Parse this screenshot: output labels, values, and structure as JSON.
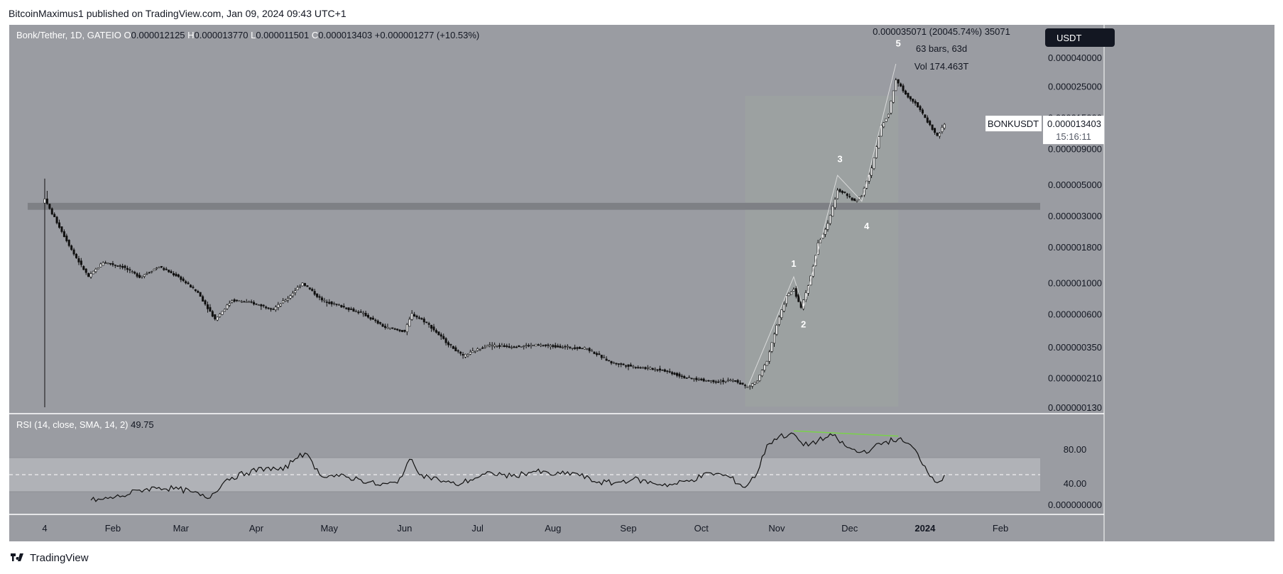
{
  "header": {
    "published_text": "BitcoinMaximus1 published on TradingView.com, Jan 09, 2024 09:43 UTC+1"
  },
  "footer": {
    "brand": "TradingView"
  },
  "colors": {
    "background": "#9a9ca2",
    "frame": "#ffffff",
    "candle": "#111111",
    "rsi_band": "#b0b2b7",
    "support_band": "#7e8085",
    "range_box": "#9fa5a0",
    "divergence": "#7ad24a",
    "wave_label": "#ffffff"
  },
  "chart_data": {
    "type": "candlestick",
    "symbol_line": {
      "name": "Bonk/Tether, 1D, GATEIO",
      "o_label": "O",
      "o": "0.000012125",
      "h_label": "H",
      "h": "0.000013770",
      "l_label": "L",
      "l": "0.000011501",
      "c_label": "C",
      "c": "0.000013403",
      "change": "+0.000001277 (+10.53%)"
    },
    "currency_button": "USDT",
    "price_tag": {
      "symbol": "BONKUSDT",
      "price": "0.000013403",
      "countdown": "15:16:11"
    },
    "y_scale": "log",
    "y_ticks": [
      "0.000040000",
      "0.000025000",
      "0.000015000",
      "0.000009000",
      "0.000005000",
      "0.000003000",
      "0.000001800",
      "0.000001000",
      "0.000000600",
      "0.000000350",
      "0.000000210",
      "0.000000130"
    ],
    "y_tick_values": [
      4e-05,
      2.5e-05,
      1.5e-05,
      9e-06,
      5e-06,
      3e-06,
      1.8e-06,
      1e-06,
      6e-07,
      3.5e-07,
      2.1e-07,
      1.3e-07
    ],
    "x_ticks": [
      "4",
      "Feb",
      "Mar",
      "Apr",
      "May",
      "Jun",
      "Jul",
      "Aug",
      "Sep",
      "Oct",
      "Nov",
      "Dec",
      "2024",
      "Feb"
    ],
    "x_tick_dates": [
      "2023-01-04",
      "2023-02-01",
      "2023-03-01",
      "2023-04-01",
      "2023-05-01",
      "2023-06-01",
      "2023-07-01",
      "2023-08-01",
      "2023-09-01",
      "2023-10-01",
      "2023-11-01",
      "2023-12-01",
      "2024-01-01",
      "2024-02-01"
    ],
    "x_tick_bold": [
      false,
      false,
      false,
      false,
      false,
      false,
      false,
      false,
      false,
      false,
      false,
      false,
      true,
      false
    ],
    "start_date": "2023-01-04",
    "close_path": [
      [
        "2023-01-04",
        4e-06
      ],
      [
        "2023-01-05",
        3.6e-06
      ],
      [
        "2023-01-10",
        2.5e-06
      ],
      [
        "2023-01-16",
        1.6e-06
      ],
      [
        "2023-01-22",
        1.1e-06
      ],
      [
        "2023-01-28",
        1.4e-06
      ],
      [
        "2023-02-05",
        1.3e-06
      ],
      [
        "2023-02-12",
        1.1e-06
      ],
      [
        "2023-02-20",
        1.3e-06
      ],
      [
        "2023-02-28",
        1.1e-06
      ],
      [
        "2023-03-08",
        8.5e-07
      ],
      [
        "2023-03-15",
        5.5e-07
      ],
      [
        "2023-03-22",
        7.5e-07
      ],
      [
        "2023-03-30",
        7.2e-07
      ],
      [
        "2023-04-08",
        6.5e-07
      ],
      [
        "2023-04-14",
        7.8e-07
      ],
      [
        "2023-04-20",
        1e-06
      ],
      [
        "2023-04-28",
        7.5e-07
      ],
      [
        "2023-05-06",
        6.8e-07
      ],
      [
        "2023-05-15",
        6e-07
      ],
      [
        "2023-05-24",
        4.8e-07
      ],
      [
        "2023-06-01",
        4.5e-07
      ],
      [
        "2023-06-04",
        6e-07
      ],
      [
        "2023-06-10",
        5.2e-07
      ],
      [
        "2023-06-18",
        3.8e-07
      ],
      [
        "2023-06-25",
        3e-07
      ],
      [
        "2023-07-05",
        3.6e-07
      ],
      [
        "2023-07-15",
        3.5e-07
      ],
      [
        "2023-07-25",
        3.6e-07
      ],
      [
        "2023-08-05",
        3.5e-07
      ],
      [
        "2023-08-15",
        3.4e-07
      ],
      [
        "2023-08-25",
        2.7e-07
      ],
      [
        "2023-09-05",
        2.5e-07
      ],
      [
        "2023-09-15",
        2.4e-07
      ],
      [
        "2023-09-25",
        2.1e-07
      ],
      [
        "2023-10-05",
        2e-07
      ],
      [
        "2023-10-15",
        2e-07
      ],
      [
        "2023-10-20",
        1.8e-07
      ],
      [
        "2023-10-24",
        2e-07
      ],
      [
        "2023-10-28",
        2.8e-07
      ],
      [
        "2023-11-01",
        5e-07
      ],
      [
        "2023-11-05",
        8e-07
      ],
      [
        "2023-11-08",
        9e-07
      ],
      [
        "2023-11-11",
        6.6e-07
      ],
      [
        "2023-11-15",
        1.1e-06
      ],
      [
        "2023-11-18",
        1.9e-06
      ],
      [
        "2023-11-22",
        2.6e-06
      ],
      [
        "2023-11-26",
        4.6e-06
      ],
      [
        "2023-11-29",
        4.3e-06
      ],
      [
        "2023-12-03",
        3.8e-06
      ],
      [
        "2023-12-06",
        4.2e-06
      ],
      [
        "2023-12-10",
        6.5e-06
      ],
      [
        "2023-12-14",
        1.3e-05
      ],
      [
        "2023-12-17",
        1.6e-05
      ],
      [
        "2023-12-20",
        2.8e-05
      ],
      [
        "2023-12-24",
        2.2e-05
      ],
      [
        "2023-12-28",
        1.9e-05
      ],
      [
        "2024-01-02",
        1.4e-05
      ],
      [
        "2024-01-06",
        1.1e-05
      ],
      [
        "2024-01-09",
        1.3403e-05
      ]
    ],
    "support_zone": [
      3.3e-06,
      3.7e-06
    ],
    "range_box": {
      "from": "2023-10-19",
      "to": "2023-12-21"
    },
    "measurement": {
      "line1": "0.000035071 (20045.74%) 35071",
      "line2": "63 bars, 63d",
      "line3": "Vol 174.463T"
    },
    "wave_labels": [
      {
        "text": "1",
        "date": "2023-11-08",
        "price": 1.3e-06
      },
      {
        "text": "2",
        "date": "2023-11-12",
        "price": 4.8e-07
      },
      {
        "text": "3",
        "date": "2023-11-27",
        "price": 7.2e-06
      },
      {
        "text": "4",
        "date": "2023-12-08",
        "price": 2.4e-06
      },
      {
        "text": "5",
        "date": "2023-12-21",
        "price": 4.8e-05
      }
    ],
    "rsi": {
      "label": "RSI (14, close, SMA, 14, 2)",
      "value": "49.75",
      "y_ticks": [
        "80.00",
        "40.00"
      ],
      "y_tick_values": [
        80,
        40
      ],
      "band": [
        30,
        70
      ],
      "midline": 50,
      "path": [
        [
          "2023-01-23",
          20
        ],
        [
          "2023-01-28",
          21
        ],
        [
          "2023-02-05",
          25
        ],
        [
          "2023-02-12",
          32
        ],
        [
          "2023-02-20",
          35
        ],
        [
          "2023-02-28",
          33
        ],
        [
          "2023-03-05",
          30
        ],
        [
          "2023-03-12",
          22
        ],
        [
          "2023-03-20",
          45
        ],
        [
          "2023-03-28",
          52
        ],
        [
          "2023-04-05",
          58
        ],
        [
          "2023-04-12",
          55
        ],
        [
          "2023-04-19",
          75
        ],
        [
          "2023-04-23",
          70
        ],
        [
          "2023-04-27",
          50
        ],
        [
          "2023-05-05",
          48
        ],
        [
          "2023-05-13",
          45
        ],
        [
          "2023-05-21",
          38
        ],
        [
          "2023-05-29",
          40
        ],
        [
          "2023-06-03",
          68
        ],
        [
          "2023-06-08",
          50
        ],
        [
          "2023-06-15",
          44
        ],
        [
          "2023-06-22",
          38
        ],
        [
          "2023-06-30",
          46
        ],
        [
          "2023-07-07",
          52
        ],
        [
          "2023-07-15",
          48
        ],
        [
          "2023-07-24",
          54
        ],
        [
          "2023-08-02",
          50
        ],
        [
          "2023-08-10",
          52
        ],
        [
          "2023-08-18",
          42
        ],
        [
          "2023-08-26",
          40
        ],
        [
          "2023-09-03",
          45
        ],
        [
          "2023-09-11",
          40
        ],
        [
          "2023-09-19",
          38
        ],
        [
          "2023-09-27",
          44
        ],
        [
          "2023-10-05",
          52
        ],
        [
          "2023-10-12",
          48
        ],
        [
          "2023-10-19",
          35
        ],
        [
          "2023-10-24",
          52
        ],
        [
          "2023-10-28",
          85
        ],
        [
          "2023-11-02",
          95
        ],
        [
          "2023-11-08",
          98
        ],
        [
          "2023-11-12",
          84
        ],
        [
          "2023-11-18",
          90
        ],
        [
          "2023-11-24",
          96
        ],
        [
          "2023-11-30",
          82
        ],
        [
          "2023-12-05",
          76
        ],
        [
          "2023-12-10",
          80
        ],
        [
          "2023-12-15",
          88
        ],
        [
          "2023-12-21",
          92
        ],
        [
          "2023-12-27",
          82
        ],
        [
          "2024-01-01",
          60
        ],
        [
          "2024-01-03",
          48
        ],
        [
          "2024-01-07",
          42
        ],
        [
          "2024-01-09",
          49.75
        ]
      ],
      "divergence": [
        [
          "2023-11-08",
          98
        ],
        [
          "2023-12-21",
          92
        ]
      ]
    }
  }
}
